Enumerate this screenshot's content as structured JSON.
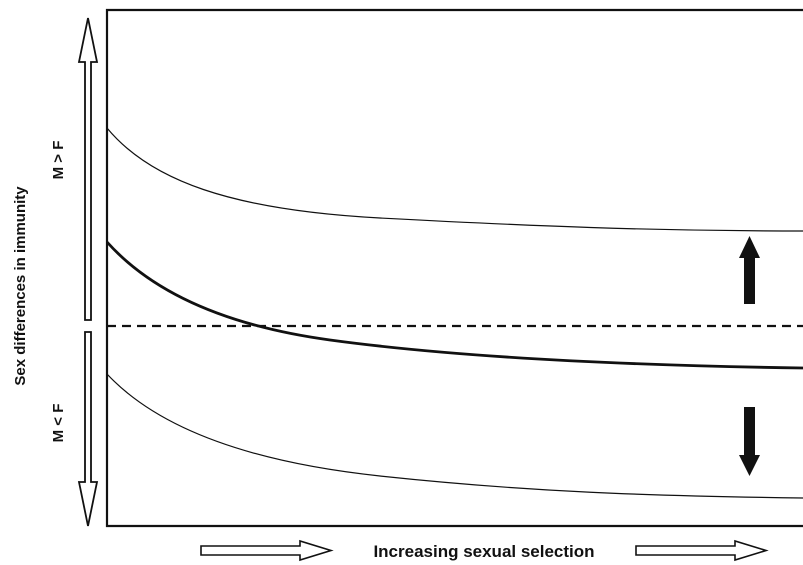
{
  "diagram": {
    "y_axis_label": "Sex differences in immunity",
    "upper_region_label": "M > F",
    "lower_region_label": "M < F",
    "x_axis_label": "Increasing sexual selection"
  },
  "colors": {
    "line": "#111111",
    "background": "#ffffff"
  },
  "icons": [
    "double-arrow-up",
    "double-arrow-down",
    "arrow-right",
    "arrow-up",
    "arrow-down"
  ]
}
